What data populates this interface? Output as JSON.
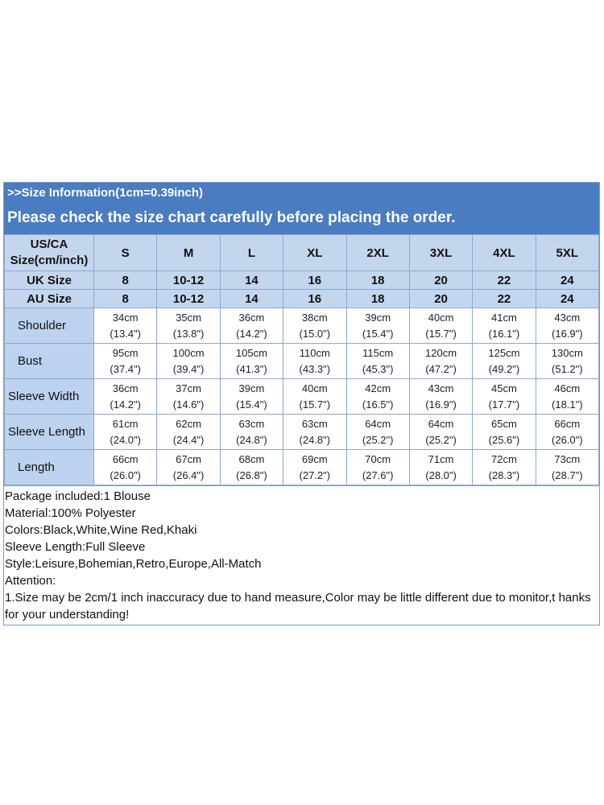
{
  "banner": {
    "info": ">>Size Information(1cm=0.39inch)",
    "notice": "Please check the size chart carefully before placing the order."
  },
  "table": {
    "corner_line1": "US/CA",
    "corner_line2": "Size(cm/inch)",
    "sizes": [
      "S",
      "M",
      "L",
      "XL",
      "2XL",
      "3XL",
      "4XL",
      "5XL"
    ],
    "uk_label": "UK Size",
    "uk": [
      "8",
      "10-12",
      "14",
      "16",
      "18",
      "20",
      "22",
      "24"
    ],
    "au_label": "AU Size",
    "au": [
      "8",
      "10-12",
      "14",
      "16",
      "18",
      "20",
      "22",
      "24"
    ],
    "rows": [
      {
        "label": "Shoulder",
        "cm": [
          "34cm",
          "35cm",
          "36cm",
          "38cm",
          "39cm",
          "40cm",
          "41cm",
          "43cm"
        ],
        "inch": [
          "(13.4\")",
          "(13.8\")",
          "(14.2\")",
          "(15.0\")",
          "(15.4\")",
          "(15.7\")",
          "(16.1\")",
          "(16.9\")"
        ]
      },
      {
        "label": "Bust",
        "cm": [
          "95cm",
          "100cm",
          "105cm",
          "110cm",
          "115cm",
          "120cm",
          "125cm",
          "130cm"
        ],
        "inch": [
          "(37.4\")",
          "(39.4\")",
          "(41.3\")",
          "(43.3\")",
          "(45.3\")",
          "(47.2\")",
          "(49.2\")",
          "(51.2\")"
        ]
      },
      {
        "label": "Sleeve Width",
        "cm": [
          "36cm",
          "37cm",
          "39cm",
          "40cm",
          "42cm",
          "43cm",
          "45cm",
          "46cm"
        ],
        "inch": [
          "(14.2\")",
          "(14.6\")",
          "(15.4\")",
          "(15.7\")",
          "(16.5\")",
          "(16.9\")",
          "(17.7\")",
          "(18.1\")"
        ]
      },
      {
        "label": "Sleeve Length",
        "cm": [
          "61cm",
          "62cm",
          "63cm",
          "63cm",
          "64cm",
          "64cm",
          "65cm",
          "66cm"
        ],
        "inch": [
          "(24.0\")",
          "(24.4\")",
          "(24.8\")",
          "(24.8\")",
          "(25.2\")",
          "(25.2\")",
          "(25.6\")",
          "(26.0\")"
        ]
      },
      {
        "label": "Length",
        "cm": [
          "66cm",
          "67cm",
          "68cm",
          "69cm",
          "70cm",
          "71cm",
          "72cm",
          "73cm"
        ],
        "inch": [
          "(26.0\")",
          "(26.4\")",
          "(26.8\")",
          "(27.2\")",
          "(27.6\")",
          "(28.0\")",
          "(28.3\")",
          "(28.7\")"
        ]
      }
    ]
  },
  "notes": [
    "Package included:1 Blouse",
    "Material:100% Polyester",
    "Colors:Black,White,Wine Red,Khaki",
    "Sleeve Length:Full Sleeve",
    "Style:Leisure,Bohemian,Retro,Europe,All-Match",
    "Attention:",
    "1.Size may be 2cm/1 inch inaccuracy due to hand measure,Color may be little different due to monitor,t hanks for your understanding!"
  ],
  "colors": {
    "banner": "#4a7cc1",
    "header_cell": "#c4d6ee",
    "label_cell": "#bcd2ee",
    "border": "#8ba7cf"
  }
}
